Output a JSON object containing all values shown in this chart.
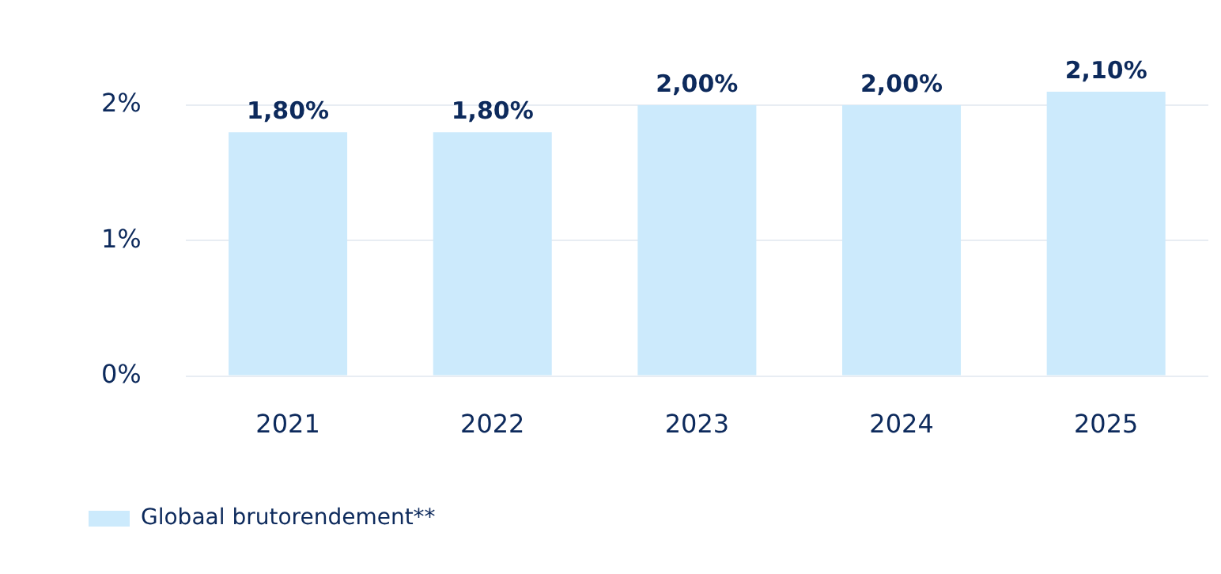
{
  "chart_data": {
    "type": "bar",
    "categories": [
      "2021",
      "2022",
      "2023",
      "2024",
      "2025"
    ],
    "series": [
      {
        "name": "Globaal brutorendement**",
        "color": "#cceafc",
        "values": [
          1.8,
          1.8,
          2.0,
          2.0,
          2.1
        ],
        "value_labels": [
          "1,80%",
          "1,80%",
          "2,00%",
          "2,00%",
          "2,10%"
        ]
      }
    ],
    "ylim": [
      0,
      2.1
    ],
    "yticks": [
      {
        "value": 0,
        "label": "0%"
      },
      {
        "value": 1,
        "label": "1%"
      },
      {
        "value": 2,
        "label": "2%"
      }
    ],
    "grid": "y",
    "legend": "bottom left"
  }
}
